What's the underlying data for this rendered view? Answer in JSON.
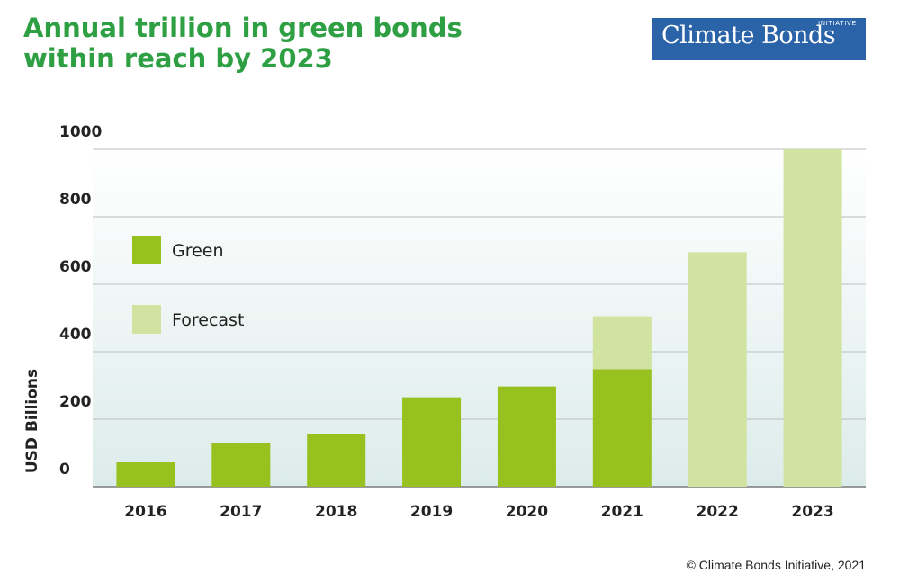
{
  "title": {
    "line1": "Annual trillion in green bonds",
    "line2": "within reach by 2023"
  },
  "logo": {
    "main": "Climate Bonds",
    "sub": "INITIATIVE"
  },
  "copyright": "© Climate Bonds Initiative, 2021",
  "colors": {
    "title": "#2ea043",
    "green": "#96c11f",
    "forecast": "#d0e3a0",
    "logo_bg": "#2a63a8"
  },
  "chart_data": {
    "type": "bar",
    "stacked": true,
    "categories": [
      "2016",
      "2017",
      "2018",
      "2019",
      "2020",
      "2021",
      "2022",
      "2023"
    ],
    "series": [
      {
        "name": "Green",
        "values": [
          72,
          130,
          157,
          265,
          297,
          348,
          0,
          0
        ]
      },
      {
        "name": "Forecast",
        "values": [
          0,
          0,
          0,
          0,
          0,
          157,
          695,
          1000
        ]
      }
    ],
    "ylabel": "USD Billions",
    "xlabel": "",
    "ylim": [
      0,
      1000
    ],
    "yticks": [
      0,
      200,
      400,
      600,
      800,
      1000
    ],
    "grid": true,
    "legend_position": "upper-left"
  }
}
